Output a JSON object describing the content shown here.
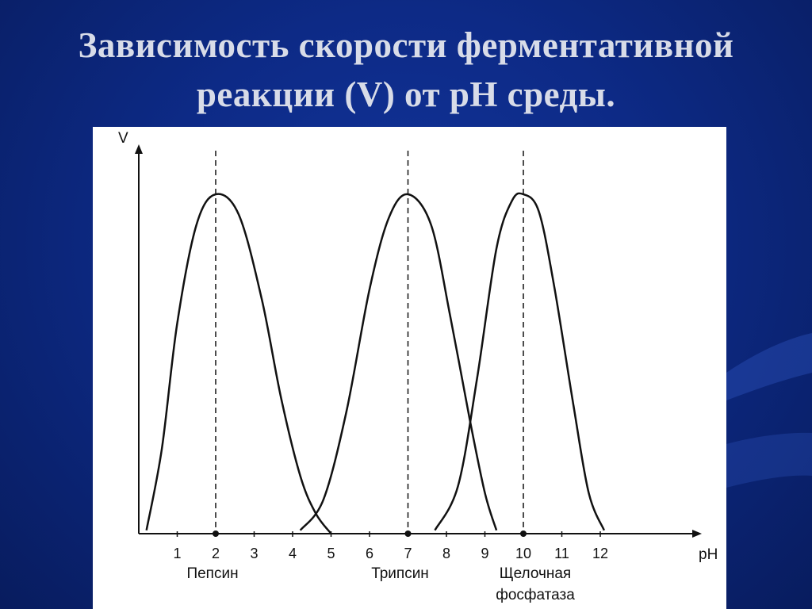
{
  "slide": {
    "title_line1": "Зависимость скорости ферментативной",
    "title_line2": "реакции (V) от pH среды.",
    "title_color": "#d8dce8",
    "background_color": "#0d2a86"
  },
  "chart_data": {
    "type": "line",
    "ylabel": "V",
    "xlabel": "pH",
    "x_ticks": [
      "1",
      "2",
      "3",
      "4",
      "5",
      "6",
      "7",
      "8",
      "9",
      "10",
      "11",
      "12"
    ],
    "xlim": [
      0,
      13.5
    ],
    "ylim": [
      0,
      1.12
    ],
    "grid": false,
    "series": [
      {
        "name": "Пепсин",
        "optimum_label": "Пепсин",
        "optimum_ph": 2,
        "points": [
          [
            0.2,
            0.01
          ],
          [
            0.6,
            0.25
          ],
          [
            1.0,
            0.62
          ],
          [
            1.5,
            0.91
          ],
          [
            2.0,
            1.0
          ],
          [
            2.6,
            0.94
          ],
          [
            3.2,
            0.69
          ],
          [
            3.7,
            0.4
          ],
          [
            4.2,
            0.17
          ],
          [
            4.6,
            0.06
          ],
          [
            5.0,
            0.0
          ]
        ]
      },
      {
        "name": "Трипсин",
        "optimum_label": "Трипсин",
        "optimum_ph": 7,
        "points": [
          [
            4.2,
            0.01
          ],
          [
            4.8,
            0.1
          ],
          [
            5.4,
            0.36
          ],
          [
            6.0,
            0.72
          ],
          [
            6.5,
            0.93
          ],
          [
            7.0,
            1.0
          ],
          [
            7.6,
            0.91
          ],
          [
            8.1,
            0.64
          ],
          [
            8.6,
            0.34
          ],
          [
            9.0,
            0.12
          ],
          [
            9.3,
            0.01
          ]
        ]
      },
      {
        "name": "Щелочная фосфатаза",
        "optimum_label": "Щелочная фосфатаза",
        "optimum_ph": 10,
        "points": [
          [
            7.7,
            0.01
          ],
          [
            8.3,
            0.14
          ],
          [
            8.8,
            0.46
          ],
          [
            9.3,
            0.84
          ],
          [
            9.7,
            0.98
          ],
          [
            10.0,
            1.0
          ],
          [
            10.4,
            0.95
          ],
          [
            10.8,
            0.73
          ],
          [
            11.3,
            0.38
          ],
          [
            11.7,
            0.12
          ],
          [
            12.1,
            0.01
          ]
        ]
      }
    ],
    "annotations": {
      "label_line1": [
        "Пепсин",
        "Трипсин",
        "Щелочная"
      ],
      "label_line2": [
        "",
        "",
        "фосфатаза"
      ]
    },
    "line_color": "#111111"
  }
}
